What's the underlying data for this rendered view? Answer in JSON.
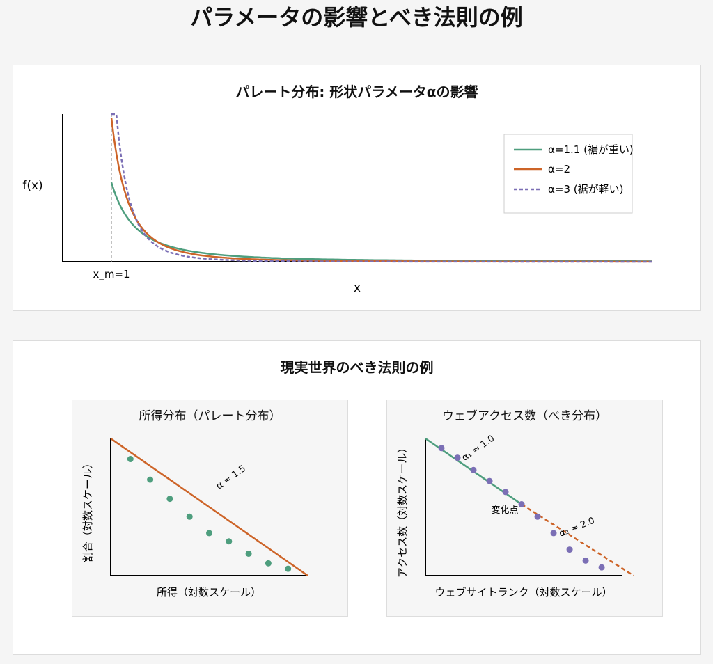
{
  "page": {
    "title": "パラメータの影響とべき法則の例"
  },
  "top_panel": {
    "title": "パレート分布: 形状パラメータαの影響"
  },
  "bottom_panel": {
    "title": "現実世界のべき法則の例"
  },
  "colors": {
    "green": "#4e9e7e",
    "orange": "#cd6428",
    "purple": "#7b6fb5",
    "axis": "#000000",
    "guide": "#999999"
  },
  "chart_data": [
    {
      "type": "line",
      "title": "パレート分布: 形状パラメータαの影響",
      "xlabel": "x",
      "ylabel": "f(x)",
      "x_marker": {
        "x": 1,
        "label": "x_m=1"
      },
      "legend_position": "top-right",
      "series": [
        {
          "name": "α=1.1 (裾が重い)",
          "alpha": 1.1,
          "style": "solid",
          "color": "#4e9e7e"
        },
        {
          "name": "α=2",
          "alpha": 2,
          "style": "solid",
          "color": "#cd6428"
        },
        {
          "name": "α=3 (裾が軽い)",
          "alpha": 3,
          "style": "dashed",
          "color": "#7b6fb5"
        }
      ]
    },
    {
      "type": "scatter",
      "title": "所得分布（パレート分布）",
      "xlabel": "所得（対数スケール）",
      "ylabel": "割合（対数スケール）",
      "log_x": true,
      "log_y": true,
      "points": [
        [
          1,
          0.85
        ],
        [
          2,
          0.7
        ],
        [
          3,
          0.56
        ],
        [
          4,
          0.43
        ],
        [
          5,
          0.31
        ],
        [
          6,
          0.25
        ],
        [
          7,
          0.16
        ],
        [
          8,
          0.09
        ],
        [
          9,
          0.05
        ]
      ],
      "fit_line": {
        "alpha": 1.5,
        "label": "α ≈ 1.5",
        "from": [
          0,
          1.0
        ],
        "to": [
          10,
          0.0
        ]
      }
    },
    {
      "type": "scatter",
      "title": "ウェブアクセス数（べき分布）",
      "xlabel": "ウェブサイトランク（対数スケール）",
      "ylabel": "アクセス数（対数スケール）",
      "log_x": true,
      "log_y": true,
      "points": [
        [
          1,
          0.93
        ],
        [
          2,
          0.86
        ],
        [
          3,
          0.77
        ],
        [
          4,
          0.69
        ],
        [
          5,
          0.61
        ],
        [
          6,
          0.52
        ],
        [
          7,
          0.43
        ],
        [
          8,
          0.31
        ],
        [
          9,
          0.19
        ],
        [
          10,
          0.11
        ],
        [
          11,
          0.06
        ]
      ],
      "segments": [
        {
          "label": "α₁ ≈ 1.0",
          "from": [
            0,
            1.0
          ],
          "to": [
            6,
            0.52
          ],
          "style": "solid",
          "color": "#4e9e7e"
        },
        {
          "label": "α₂ ≈ 2.0",
          "from": [
            6,
            0.52
          ],
          "to": [
            13,
            0.0
          ],
          "style": "dashed",
          "color": "#cd6428"
        }
      ],
      "change_point": {
        "label": "変化点",
        "x": 6
      }
    }
  ]
}
